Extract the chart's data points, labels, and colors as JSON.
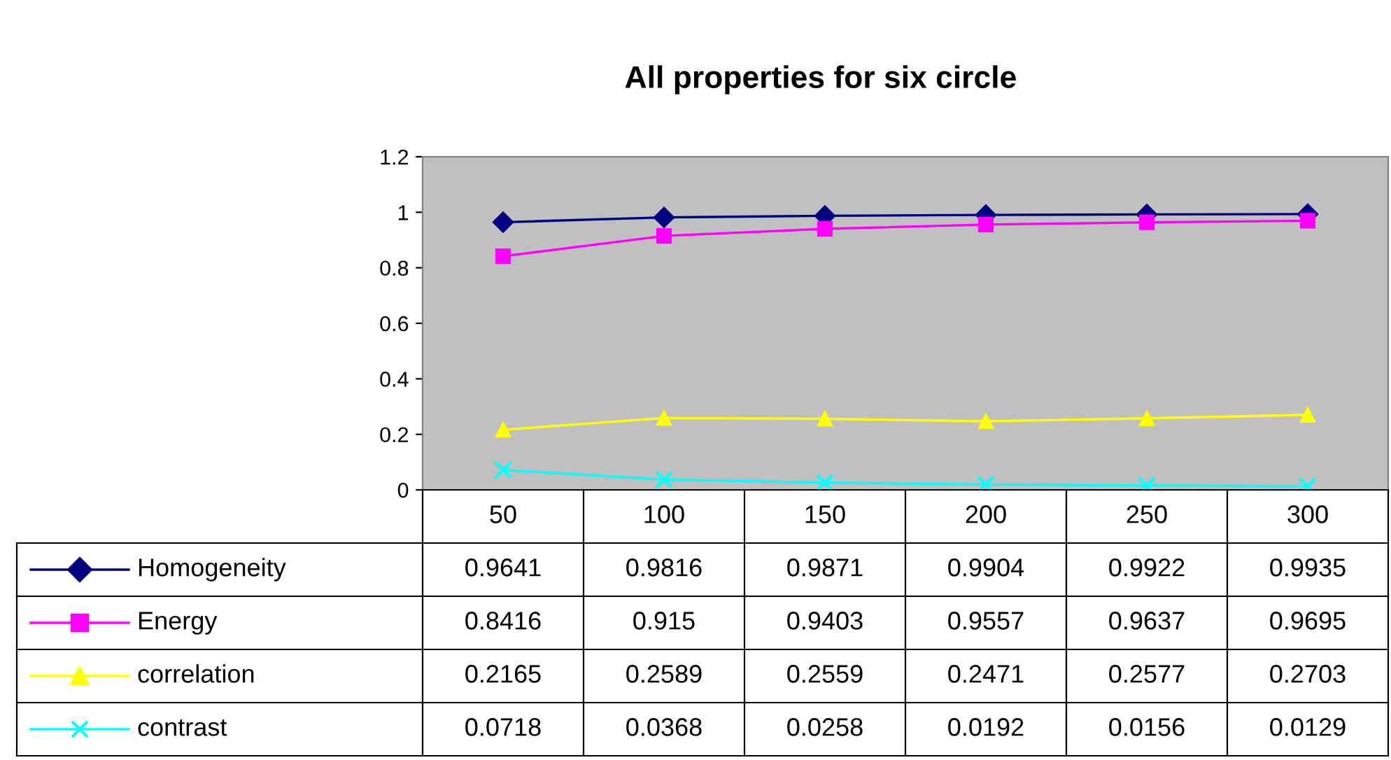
{
  "chart_data": {
    "type": "line",
    "title": "All properties for six circle",
    "categories": [
      "50",
      "100",
      "150",
      "200",
      "250",
      "300"
    ],
    "series": [
      {
        "name": "Homogeneity",
        "color": "#000080",
        "marker": "diamond",
        "values": [
          0.9641,
          0.9816,
          0.9871,
          0.9904,
          0.9922,
          0.9935
        ]
      },
      {
        "name": "Energy",
        "color": "#ff00ff",
        "marker": "square",
        "values": [
          0.8416,
          0.915,
          0.9403,
          0.9557,
          0.9637,
          0.9695
        ]
      },
      {
        "name": "correlation",
        "color": "#ffff00",
        "marker": "triangle",
        "values": [
          0.2165,
          0.2589,
          0.2559,
          0.2471,
          0.2577,
          0.2703
        ]
      },
      {
        "name": "contrast",
        "color": "#00ffff",
        "marker": "cross",
        "values": [
          0.0718,
          0.0368,
          0.0258,
          0.0192,
          0.0156,
          0.0129
        ]
      }
    ],
    "ylim": [
      0,
      1.2
    ],
    "yticks": [
      0,
      0.2,
      0.4,
      0.6,
      0.8,
      1,
      1.2
    ],
    "grid": false,
    "legend": "bottom",
    "data_labels": true
  }
}
